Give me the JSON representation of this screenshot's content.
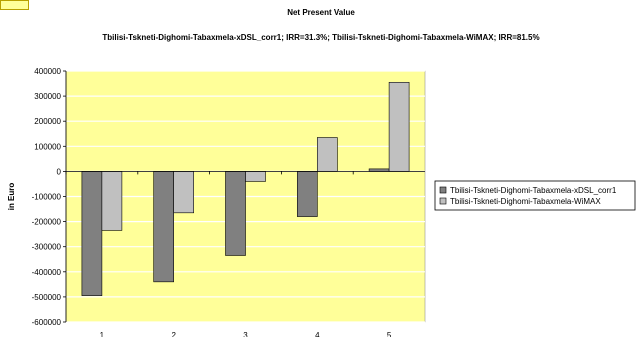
{
  "chart_data": {
    "type": "bar",
    "title": "Net Present Value",
    "subtitle": "Tbilisi-Tskneti-Dighomi-Tabaxmela-xDSL_corr1; IRR=31.3%; Tbilisi-Tskneti-Dighomi-Tabaxmela-WiMAX; IRR=81.5%",
    "xlabel": "",
    "ylabel": "in Euro",
    "categories": [
      "1",
      "2",
      "3",
      "4",
      "5"
    ],
    "ylim": [
      -600000,
      400000
    ],
    "yticks": [
      "400000",
      "300000",
      "200000",
      "100000",
      "0",
      "-100000",
      "-200000",
      "-300000",
      "-400000",
      "-500000",
      "-600000"
    ],
    "ytick_values": [
      400000,
      300000,
      200000,
      100000,
      0,
      -100000,
      -200000,
      -300000,
      -400000,
      -500000,
      -600000
    ],
    "grid": true,
    "legend_position": "right",
    "plot_background": "#ffff99",
    "series": [
      {
        "name": "Tbilisi-Tskneti-Dighomi-Tabaxmela-xDSL_corr1",
        "color": "#808080",
        "values": [
          -495000,
          -440000,
          -335000,
          -180000,
          10000
        ]
      },
      {
        "name": "Tbilisi-Tskneti-Dighomi-Tabaxmela-WiMAX",
        "color": "#c0c0c0",
        "values": [
          -235000,
          -165000,
          -40000,
          135000,
          355000
        ]
      }
    ]
  }
}
